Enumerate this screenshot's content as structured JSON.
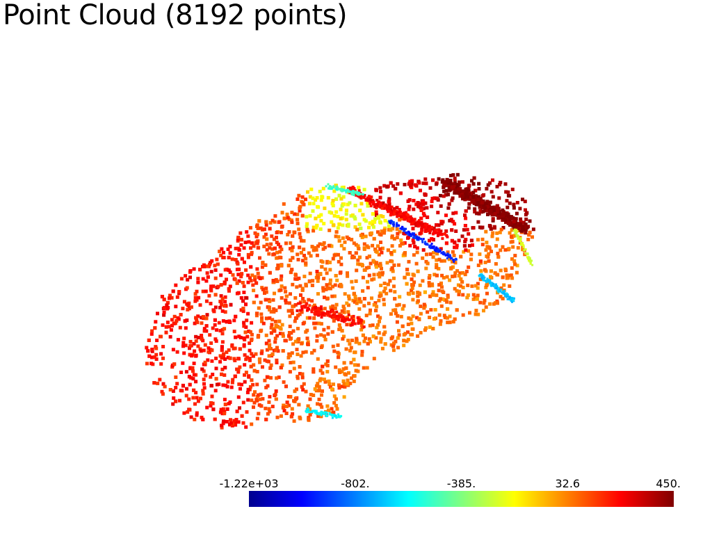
{
  "title": "Point Cloud (8192 points)",
  "chart_data": {
    "type": "scatter",
    "title": "Point Cloud (8192 points)",
    "point_count": 8192,
    "colormap": "jet",
    "scalar_range": [
      -1220,
      450
    ],
    "colorbar": {
      "tick_labels": [
        "-1.22e+03",
        "-802.",
        "-385.",
        "32.6",
        "450."
      ],
      "tick_values": [
        -1220,
        -802,
        -385,
        32.6,
        450
      ],
      "placement": "bottom-right"
    }
  }
}
